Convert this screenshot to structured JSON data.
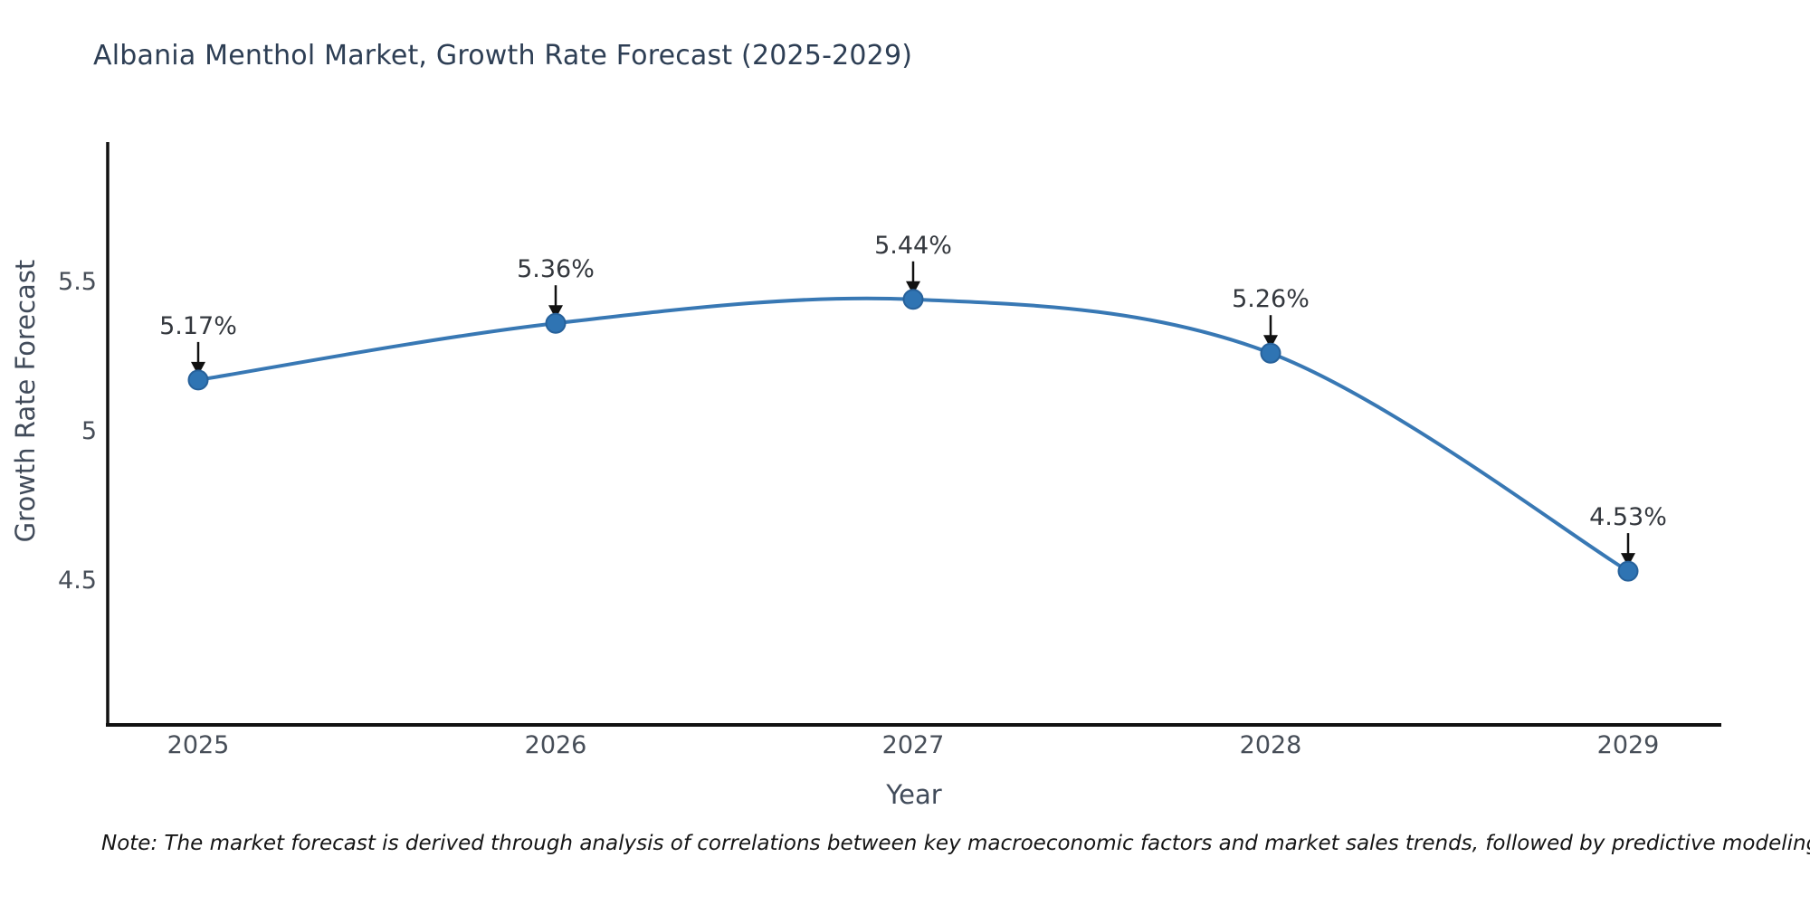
{
  "title": {
    "text": "Albania Menthol Market, Growth Rate Forecast (2025-2029)"
  },
  "chart_data": {
    "type": "line",
    "line_shape": "spline",
    "categories": [
      "2025",
      "2026",
      "2027",
      "2028",
      "2029"
    ],
    "values": [
      5.17,
      5.36,
      5.44,
      5.26,
      4.53
    ],
    "point_labels": [
      "5.17%",
      "5.36%",
      "5.44%",
      "5.26%",
      "4.53%"
    ],
    "title": "Albania Menthol Market, Growth Rate Forecast (2025-2029)",
    "xlabel": "Year",
    "ylabel": "Growth Rate Forecast",
    "y_ticks": [
      5.5,
      5,
      4.5
    ],
    "y_tick_labels": [
      "5.5",
      "5",
      "4.5"
    ],
    "ylim": [
      4.26,
      5.74
    ],
    "grid": false,
    "legend": false,
    "markers": true,
    "annotations_arrows": true,
    "line_color": "#3878b4",
    "marker_color": "#2f74b3",
    "marker_edge_color": "#27619a",
    "axis_color": "#111111"
  },
  "theme": {
    "title_color": "#2d3e54",
    "tick_label_color": "#474e58",
    "axis_title_color": "#414b5a",
    "annotation_color": "#34383e",
    "arrow_color": "#111111",
    "note_color": "#151515",
    "background": "#ffffff"
  },
  "footer": {
    "note": "Note: The market forecast is derived through analysis of correlations between key macroeconomic factors and market sales trends, followed by predictive modeling to project future sales"
  }
}
